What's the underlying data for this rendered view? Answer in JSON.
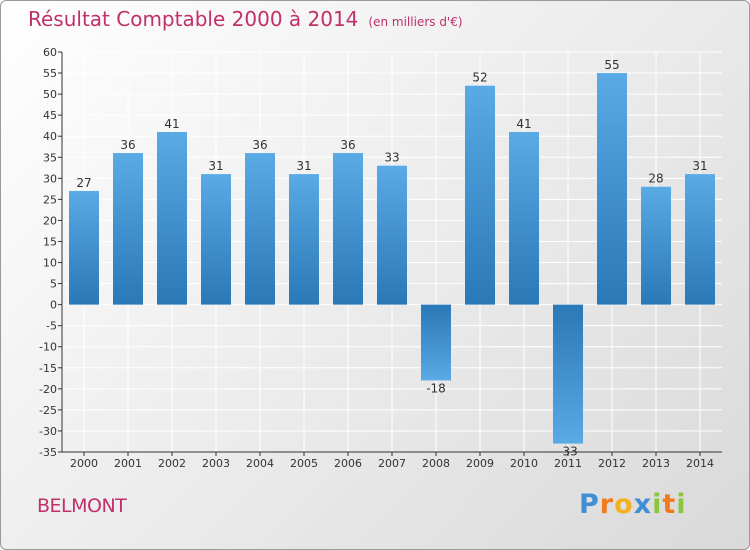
{
  "chart_data": {
    "type": "bar",
    "title": "Résultat Comptable 2000 à 2014",
    "subtitle": "(en milliers d'€)",
    "categories": [
      "2000",
      "2001",
      "2002",
      "2003",
      "2004",
      "2005",
      "2006",
      "2007",
      "2008",
      "2009",
      "2010",
      "2011",
      "2012",
      "2013",
      "2014"
    ],
    "values": [
      27,
      36,
      41,
      31,
      36,
      31,
      36,
      33,
      -18,
      52,
      41,
      -33,
      55,
      28,
      31
    ],
    "value_labels": [
      "27",
      "36",
      "41",
      "31",
      "36",
      "31",
      "36",
      "33",
      "-18",
      "52",
      "41",
      "-33",
      "55",
      "28",
      "31"
    ],
    "ylim": [
      -35,
      60
    ],
    "yticks": [
      60,
      55,
      50,
      45,
      40,
      35,
      30,
      25,
      20,
      15,
      10,
      5,
      0,
      -5,
      -10,
      -15,
      -20,
      -25,
      -30,
      -35
    ],
    "ytick_labels": [
      "60",
      "55",
      "50",
      "45",
      "40",
      "35",
      "30",
      "25",
      "20",
      "15",
      "10",
      "5",
      "0",
      "-5",
      "-10",
      "-15",
      "-20",
      "-25",
      "-30",
      "-35"
    ],
    "xlabel": "",
    "ylabel": "",
    "grid": true,
    "legend": "none",
    "bar_color_dark": "#2a78b6",
    "bar_color_light": "#5aaae6"
  },
  "commune": "BELMONT",
  "logo": {
    "letters": [
      "P",
      "r",
      "o",
      "x",
      "i",
      "t",
      "i"
    ],
    "colors": [
      "#3f8fd6",
      "#f07b1c",
      "#f2b01f",
      "#3f8fd6",
      "#8cc63f",
      "#f07b1c",
      "#8cc63f"
    ]
  }
}
